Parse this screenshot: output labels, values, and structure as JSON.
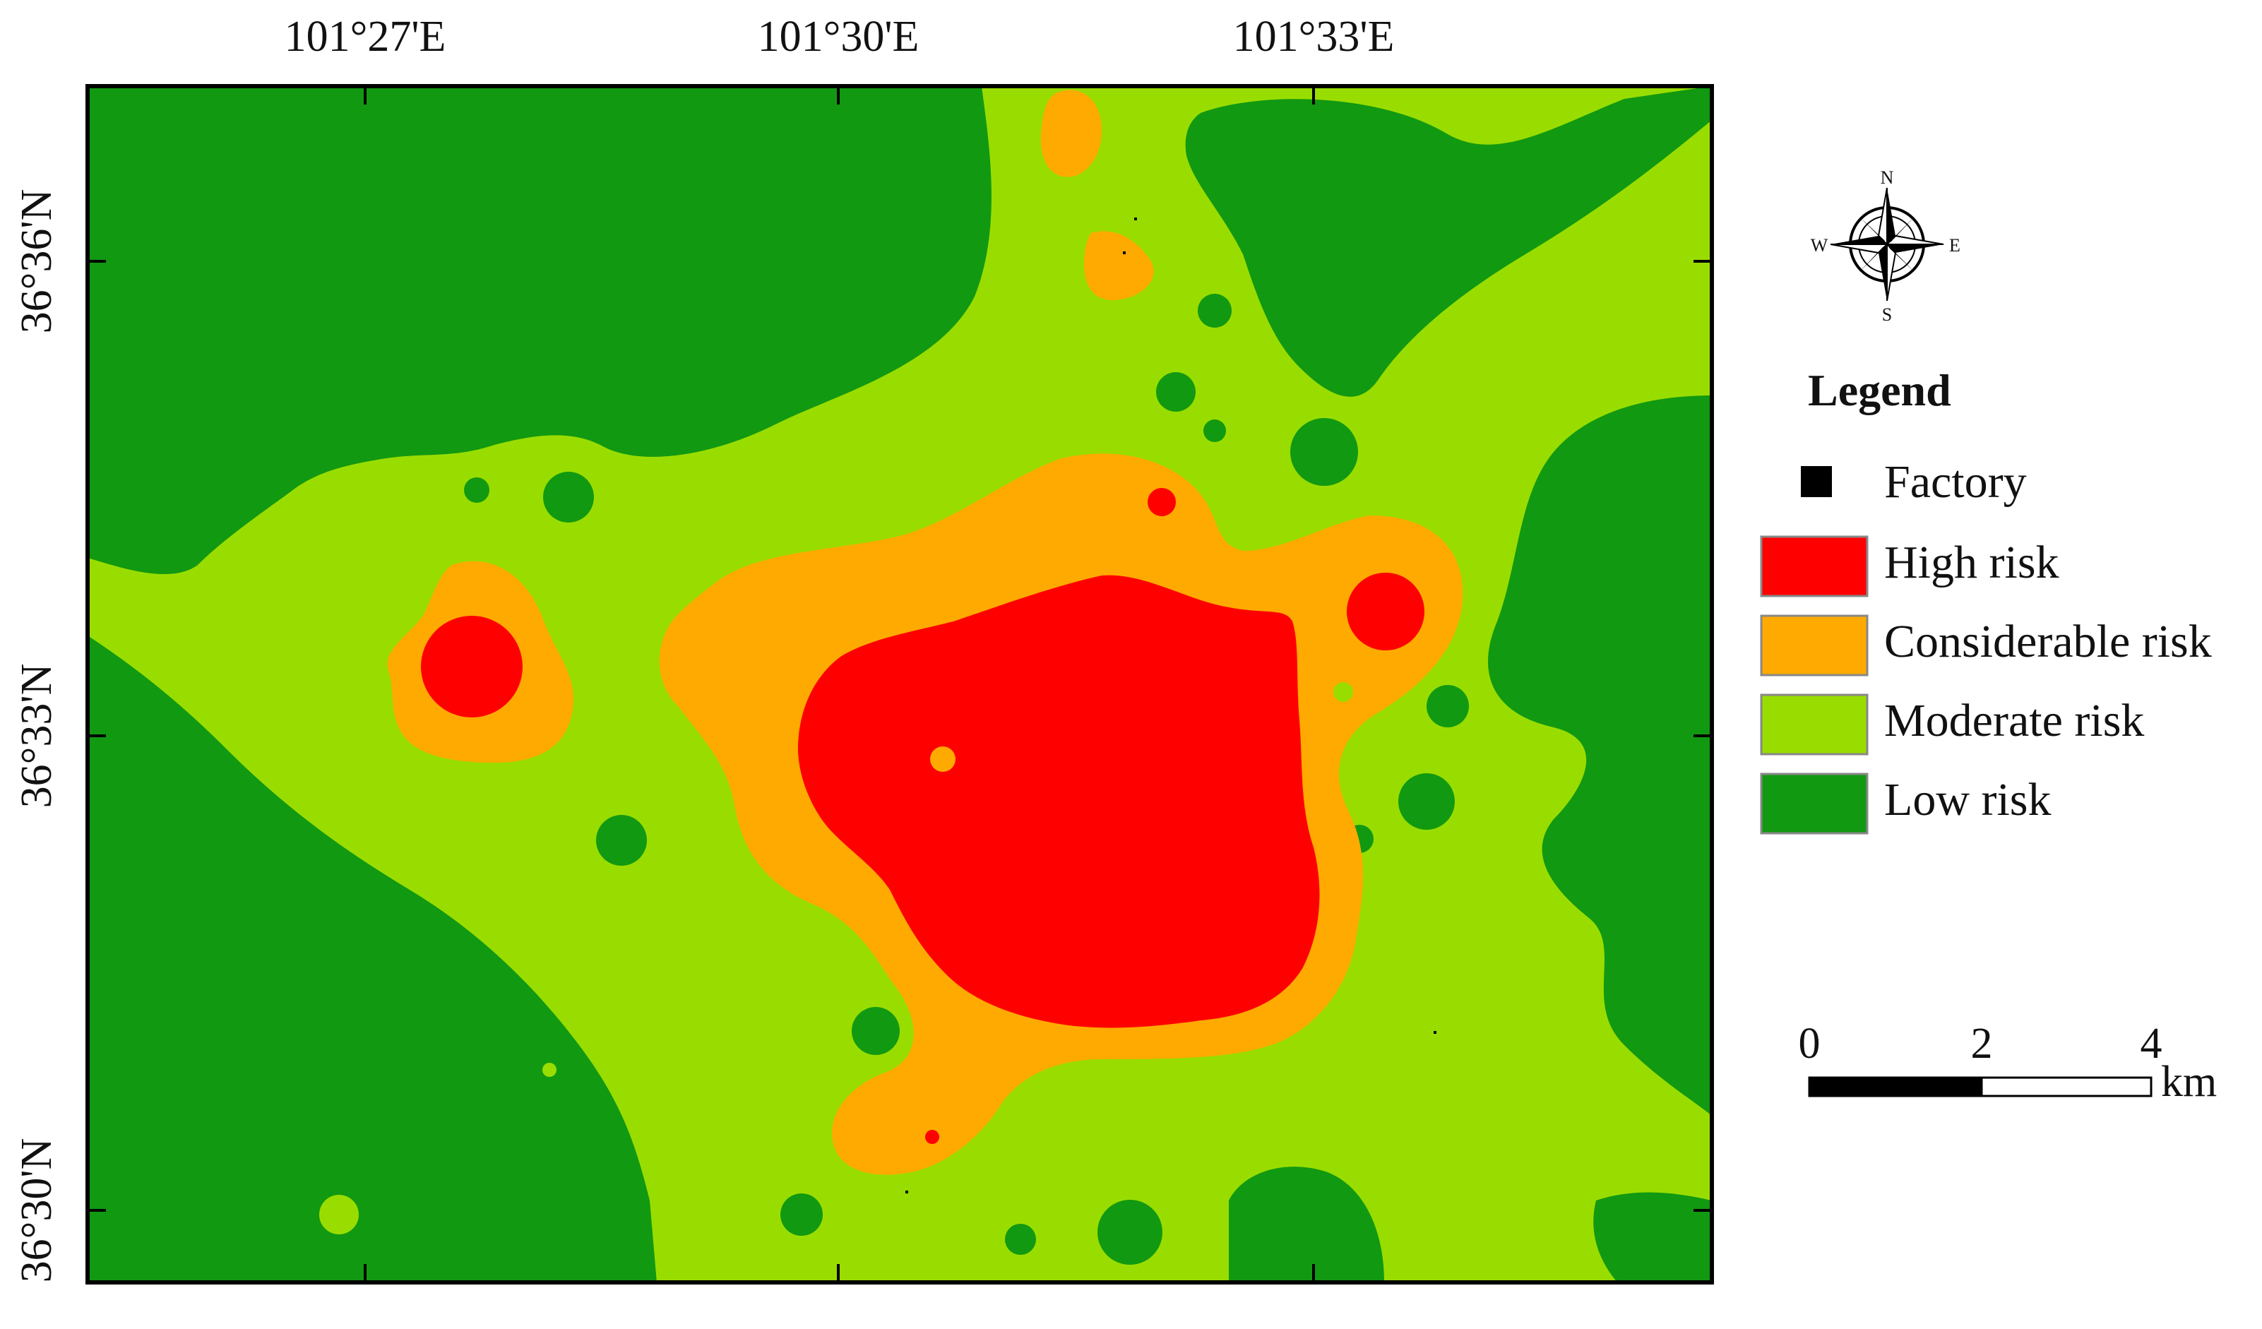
{
  "map": {
    "colors": {
      "high": "#ff0000",
      "considerable": "#ffaa00",
      "moderate": "#99dd00",
      "low": "#119911",
      "factory": "#000000"
    },
    "longitude_ticks": [
      "101°27'E",
      "101°30'E",
      "101°33'E"
    ],
    "latitude_ticks": [
      "36°36'N",
      "36°33'N",
      "36°30'N"
    ]
  },
  "compass": {
    "icon": "compass-rose-icon",
    "n": "N",
    "s": "S",
    "e": "E",
    "w": "W"
  },
  "legend": {
    "title": "Legend",
    "items": [
      {
        "label": "Factory",
        "color": "#000000",
        "type": "point"
      },
      {
        "label": "High risk",
        "color": "#ff0000",
        "type": "swatch"
      },
      {
        "label": "Considerable risk",
        "color": "#ffaa00",
        "type": "swatch"
      },
      {
        "label": "Moderate risk",
        "color": "#99dd00",
        "type": "swatch"
      },
      {
        "label": "Low risk",
        "color": "#119911",
        "type": "swatch"
      }
    ]
  },
  "scale_bar": {
    "labels": [
      "0",
      "2",
      "4"
    ],
    "unit": "km"
  }
}
